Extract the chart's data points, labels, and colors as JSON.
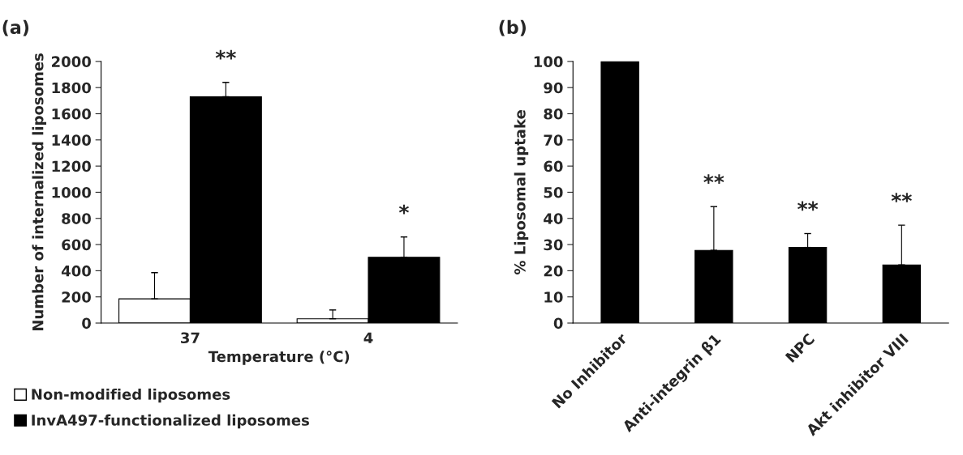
{
  "chart_data": [
    {
      "type": "bar",
      "title": "(a)",
      "xlabel": "Temperature (°C)",
      "ylabel": "Number of internalized liposomes",
      "categories": [
        "37",
        "4"
      ],
      "series": [
        {
          "name": "Non-modified liposomes",
          "color": "#ffffff",
          "values": [
            185,
            33
          ],
          "errors": [
            [
              185,
              385
            ],
            [
              33,
              100
            ]
          ]
        },
        {
          "name": "InvA497-functionalized liposomes",
          "color": "#000000",
          "values": [
            1730,
            503
          ],
          "errors": [
            [
              1730,
              1840
            ],
            [
              503,
              658
            ]
          ]
        }
      ],
      "ylim": [
        0,
        2000
      ],
      "yticks": [
        0,
        200,
        400,
        600,
        800,
        1000,
        1200,
        1400,
        1600,
        1800,
        2000
      ],
      "grid": false,
      "legend": "bottom",
      "annotations": [
        "**",
        "*"
      ]
    },
    {
      "type": "bar",
      "title": "(b)",
      "ylabel": "% Liposomal uptake",
      "categories": [
        "No Inhibitor",
        "Anti-integrin β1",
        "NPC",
        "Akt inhibitor VIII"
      ],
      "values": [
        100,
        27.8,
        28.9,
        22.2
      ],
      "color": "#000000",
      "errors": [
        null,
        [
          27.8,
          44.5
        ],
        [
          28.9,
          34.2
        ],
        [
          22.2,
          37.4
        ]
      ],
      "ylim": [
        0,
        100
      ],
      "yticks": [
        0,
        10,
        20,
        30,
        40,
        50,
        60,
        70,
        80,
        90,
        100
      ],
      "grid": false,
      "annotations": [
        "**",
        "**",
        "**"
      ]
    }
  ]
}
